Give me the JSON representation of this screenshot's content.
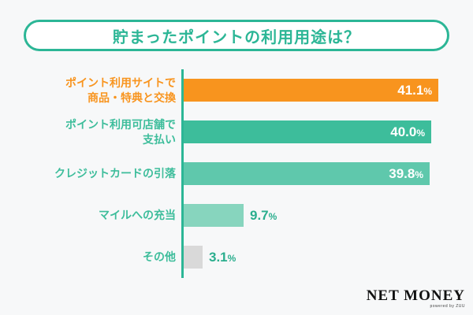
{
  "title": "貯まったポイントの利用用途は？",
  "colors": {
    "background": "#F7F8F9",
    "accent_teal": "#2CB696",
    "value_outside_text": "#2BAE8E",
    "value_inside_text": "#FFFFFF",
    "highlight_orange": "#F8941E"
  },
  "chart_data": {
    "type": "bar",
    "orientation": "horizontal",
    "title": "貯まったポイントの利用用途は？",
    "unit": "%",
    "xlim": [
      0,
      45
    ],
    "grid": false,
    "legend": false,
    "categories": [
      [
        "ポイント利用サイトで",
        "商品・特典と交換"
      ],
      [
        "ポイント利用可店舗で",
        "支払い"
      ],
      [
        "クレジットカードの引落"
      ],
      [
        "マイルへの充当"
      ],
      [
        "その他"
      ]
    ],
    "values": [
      41.1,
      40.0,
      39.8,
      9.7,
      3.1
    ],
    "value_labels": [
      "41.1%",
      "40.0%",
      "39.8%",
      "9.7%",
      "3.1%"
    ],
    "bar_colors": [
      "#F8941E",
      "#3DBD9B",
      "#5FC8AC",
      "#87D5BE",
      "#D9D9D9"
    ],
    "label_colors": [
      "#F8941E",
      "#3DBD9B",
      "#3DBD9B",
      "#3DBD9B",
      "#3DBD9B"
    ]
  },
  "footer": {
    "brand": "NET MONEY",
    "tagline": "powered by ZUU"
  }
}
